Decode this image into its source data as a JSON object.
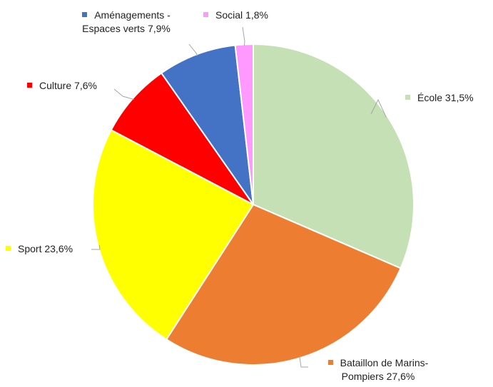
{
  "chart_data": {
    "type": "pie",
    "categories": [
      "École",
      "Bataillon de Marins-Pompiers",
      "Sport",
      "Culture",
      "Aménagements - Espaces verts",
      "Social"
    ],
    "values": [
      31.5,
      27.6,
      23.6,
      7.6,
      7.9,
      1.8
    ],
    "value_labels": [
      "31,5%",
      "27,6%",
      "23,6%",
      "7,6%",
      "7,9%",
      "1,8%"
    ],
    "colors": [
      "#c5e0b4",
      "#ed7d31",
      "#ffff00",
      "#ff0000",
      "#4472c4",
      "#ff99ff"
    ]
  }
}
